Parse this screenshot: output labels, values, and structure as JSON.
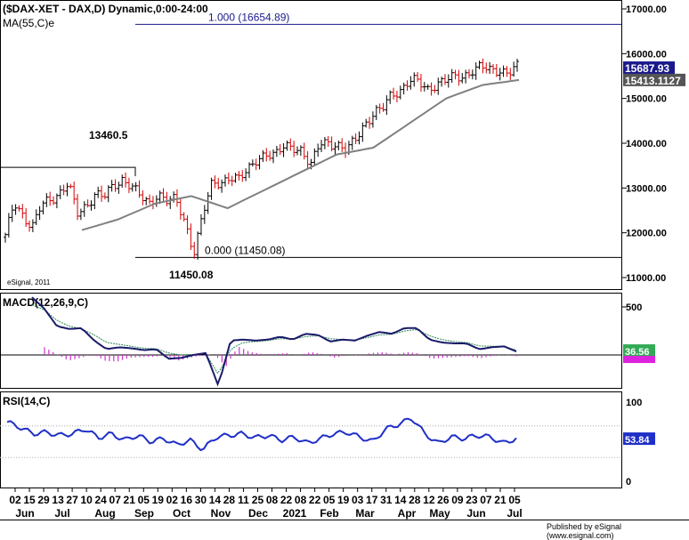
{
  "header": {
    "title": "($DAX-XET - DAX,D) Dynamic,0:00-24:00",
    "ma_label": "MA(55,C)e",
    "watermark": "eSignal, 2011",
    "publisher": "Published by eSignal (www.esignal.com)"
  },
  "chart_data": [
    {
      "type": "ohlc",
      "panel": "price",
      "ylim": [
        10800,
        17000
      ],
      "y_ticks": [
        "17000.00",
        "16000.00",
        "15000.00",
        "14000.00",
        "13000.00",
        "12000.00",
        "11000.00"
      ],
      "fib_levels": [
        {
          "label": "1.000 (16654.89)",
          "value": 16654.89
        },
        {
          "label": "0.000 (11450.08)",
          "value": 11450.08
        }
      ],
      "annotations": [
        {
          "text": "13460.5",
          "value": 13460.5
        },
        {
          "text": "11450.08",
          "value": 11450.08
        }
      ],
      "last_price": "15687.93",
      "ma_value": "15413.1127",
      "series": [
        {
          "name": "DAX close",
          "x": [
            "2020-06-01",
            "2020-06-08",
            "2020-06-15",
            "2020-06-22",
            "2020-06-29",
            "2020-07-06",
            "2020-07-13",
            "2020-07-20",
            "2020-07-27",
            "2020-08-03",
            "2020-08-10",
            "2020-08-17",
            "2020-08-24",
            "2020-08-31",
            "2020-09-07",
            "2020-09-14",
            "2020-09-21",
            "2020-09-28",
            "2020-10-05",
            "2020-10-12",
            "2020-10-19",
            "2020-10-26",
            "2020-11-02",
            "2020-11-09",
            "2020-11-16",
            "2020-11-23",
            "2020-11-30",
            "2020-12-07",
            "2020-12-14",
            "2020-12-21",
            "2020-12-28",
            "2021-01-04",
            "2021-01-11",
            "2021-01-18",
            "2021-01-25",
            "2021-02-01",
            "2021-02-08",
            "2021-02-15",
            "2021-02-22",
            "2021-03-01",
            "2021-03-08",
            "2021-03-15",
            "2021-03-22",
            "2021-03-29",
            "2021-04-05",
            "2021-04-12",
            "2021-04-19",
            "2021-04-26",
            "2021-05-03",
            "2021-05-10",
            "2021-05-17",
            "2021-05-24",
            "2021-05-31",
            "2021-06-07",
            "2021-06-14",
            "2021-06-21",
            "2021-06-28",
            "2021-07-05"
          ],
          "values": [
            11900,
            12700,
            12400,
            12100,
            12600,
            12750,
            12900,
            13100,
            12400,
            12600,
            12900,
            12800,
            13000,
            13200,
            13100,
            12800,
            12600,
            12900,
            12750,
            12700,
            12200,
            11600,
            12450,
            13050,
            13100,
            13300,
            13200,
            13350,
            13650,
            13800,
            13700,
            13900,
            13950,
            13850,
            13450,
            14000,
            14050,
            13950,
            13800,
            14100,
            14450,
            14650,
            14750,
            15100,
            15200,
            15400,
            15350,
            15200,
            15350,
            15400,
            15450,
            15500,
            15650,
            15700,
            15600,
            15650,
            15600,
            15688
          ]
        },
        {
          "name": "MA(55,C)e",
          "x": [
            "2020-07-01",
            "2020-08-01",
            "2020-09-01",
            "2020-10-01",
            "2020-11-01",
            "2020-12-01",
            "2021-01-01",
            "2021-02-01",
            "2021-03-01",
            "2021-04-01",
            "2021-05-01",
            "2021-06-01",
            "2021-07-05"
          ],
          "values": [
            12060,
            12300,
            12650,
            12820,
            12550,
            12950,
            13350,
            13750,
            13900,
            14450,
            15000,
            15300,
            15413
          ]
        }
      ]
    },
    {
      "type": "line",
      "panel": "MACD",
      "label": "MACD(12,26,9,C)",
      "y_ticks": [
        "500"
      ],
      "ylim": [
        -400,
        650
      ],
      "last_value": "36.56",
      "series": [
        {
          "name": "MACD",
          "values": [
            600,
            480,
            300,
            270,
            280,
            150,
            60,
            80,
            70,
            50,
            60,
            -40,
            -30,
            0,
            20,
            -320,
            150,
            160,
            150,
            160,
            190,
            160,
            220,
            210,
            140,
            160,
            150,
            200,
            240,
            220,
            280,
            280,
            160,
            130,
            120,
            120,
            60,
            80,
            90,
            36
          ]
        },
        {
          "name": "Signal",
          "values": [
            520,
            470,
            360,
            300,
            270,
            210,
            130,
            110,
            90,
            70,
            65,
            20,
            0,
            5,
            10,
            -200,
            60,
            130,
            140,
            150,
            170,
            165,
            190,
            200,
            170,
            160,
            155,
            180,
            210,
            215,
            250,
            265,
            200,
            160,
            140,
            130,
            95,
            90,
            90,
            50
          ]
        },
        {
          "name": "Histogram",
          "values": [
            80,
            10,
            -60,
            -30,
            10,
            -60,
            -70,
            -30,
            -20,
            -20,
            -5,
            -60,
            -30,
            -5,
            10,
            -120,
            90,
            30,
            10,
            10,
            20,
            -5,
            30,
            10,
            -30,
            0,
            -5,
            20,
            30,
            5,
            30,
            15,
            -40,
            -30,
            -20,
            -10,
            -35,
            -10,
            0,
            -14
          ]
        }
      ]
    },
    {
      "type": "line",
      "panel": "RSI",
      "label": "RSI(14,C)",
      "y_ticks": [
        "100",
        "0"
      ],
      "ylim": [
        0,
        100
      ],
      "last_value": "53.84",
      "series": [
        {
          "name": "RSI",
          "values": [
            75,
            68,
            60,
            62,
            58,
            60,
            66,
            55,
            60,
            52,
            58,
            50,
            54,
            46,
            52,
            40,
            56,
            58,
            60,
            55,
            58,
            52,
            56,
            48,
            54,
            60,
            62,
            56,
            50,
            66,
            72,
            80,
            60,
            48,
            56,
            54,
            58,
            56,
            48,
            54
          ]
        }
      ]
    }
  ],
  "x_axis": {
    "day_labels": [
      "02",
      "15",
      "29",
      "13",
      "27",
      "10",
      "24",
      "07",
      "21",
      "05",
      "19",
      "02",
      "16",
      "30",
      "14",
      "28",
      "11",
      "25",
      "08",
      "22",
      "08",
      "22",
      "05",
      "19",
      "03",
      "17",
      "31",
      "14",
      "28",
      "12",
      "26",
      "09",
      "23",
      "07",
      "21",
      "05"
    ],
    "month_labels": [
      "Jun",
      "Jul",
      "Aug",
      "Sep",
      "Oct",
      "Nov",
      "Dec",
      "2021",
      "Feb",
      "Mar",
      "Apr",
      "May",
      "Jun",
      "Jul"
    ]
  }
}
